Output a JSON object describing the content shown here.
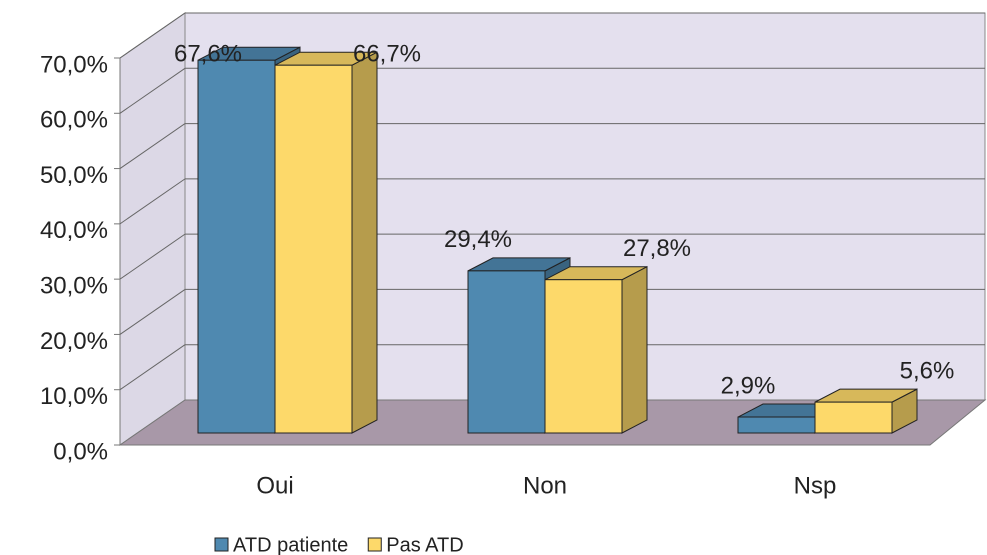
{
  "chart_data": {
    "type": "bar3d",
    "categories": [
      "Oui",
      "Non",
      "Nsp"
    ],
    "series": [
      {
        "name": "ATD patiente",
        "color": "#4f89b0",
        "values": [
          67.6,
          29.4,
          2.9
        ],
        "value_labels": [
          "67,6%",
          "29,4%",
          "2,9%"
        ]
      },
      {
        "name": "Pas ATD",
        "color": "#fdd96a",
        "values": [
          66.7,
          27.8,
          5.6
        ],
        "value_labels": [
          "66,7%",
          "27,8%",
          "5,6%"
        ]
      }
    ],
    "ylim": [
      0,
      70
    ],
    "yticks": [
      {
        "value": 0,
        "label": "0,0%"
      },
      {
        "value": 10,
        "label": "10,0%"
      },
      {
        "value": 20,
        "label": "20,0%"
      },
      {
        "value": 30,
        "label": "30,0%"
      },
      {
        "value": 40,
        "label": "40,0%"
      },
      {
        "value": 50,
        "label": "50,0%"
      },
      {
        "value": 60,
        "label": "60,0%"
      },
      {
        "value": 70,
        "label": "70,0%"
      }
    ],
    "grid": true,
    "legend": "bottom"
  }
}
